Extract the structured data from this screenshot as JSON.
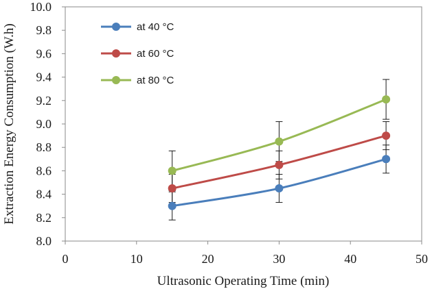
{
  "chart_data": {
    "type": "line",
    "title": "",
    "xlabel": "Ultrasonic Operating Time (min)",
    "ylabel": "Extraction Energy Consumption (W.h)",
    "xlim": [
      0,
      50
    ],
    "ylim": [
      8.0,
      10.0
    ],
    "x_ticks": [
      "0",
      "10",
      "20",
      "30",
      "40",
      "50"
    ],
    "y_ticks": [
      "8.0",
      "8.2",
      "8.4",
      "8.6",
      "8.8",
      "9.0",
      "9.2",
      "9.4",
      "9.6",
      "9.8",
      "10.0"
    ],
    "grid": false,
    "legend_position": "top-left",
    "x": [
      15,
      30,
      45
    ],
    "series": [
      {
        "name": "at 40 °C",
        "color": "#4a7ebb",
        "values": [
          8.3,
          8.45,
          8.7
        ],
        "errors": [
          0.12,
          0.12,
          0.12
        ]
      },
      {
        "name": "at 60 °C",
        "color": "#be4b48",
        "values": [
          8.45,
          8.65,
          8.9
        ],
        "errors": [
          0.12,
          0.12,
          0.12
        ]
      },
      {
        "name": "at 80 °C",
        "color": "#98b954",
        "values": [
          8.6,
          8.85,
          9.21
        ],
        "errors": [
          0.17,
          0.17,
          0.17
        ]
      }
    ]
  }
}
